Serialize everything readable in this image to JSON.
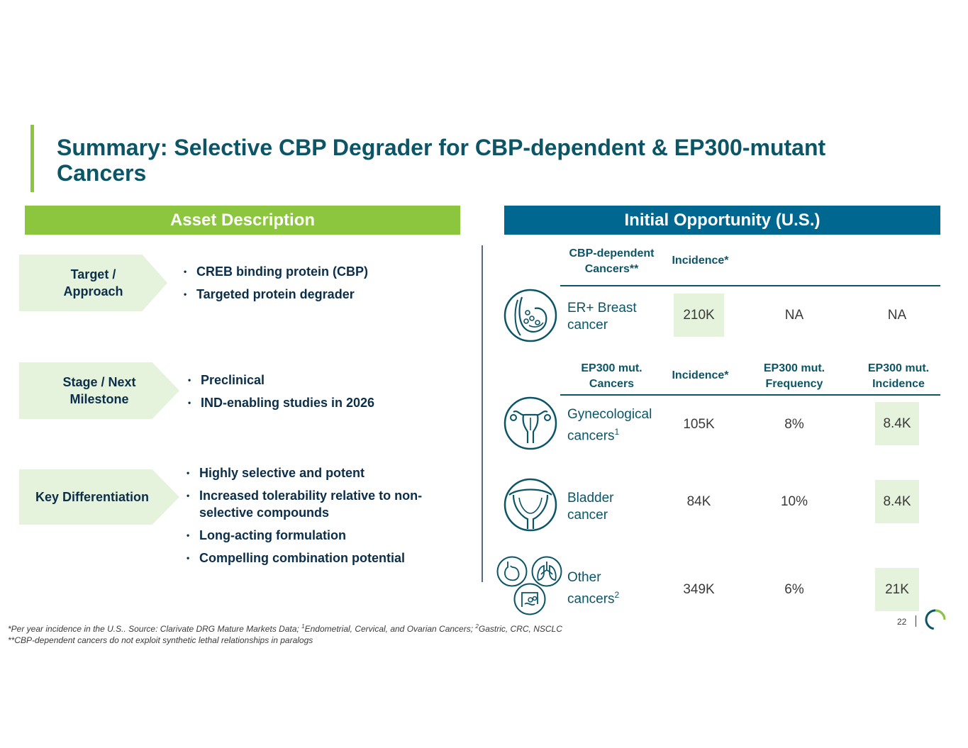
{
  "title": "Summary: Selective CBP Degrader for CBP-dependent & EP300-mutant Cancers",
  "asset_header": "Asset Description",
  "opportunity_header": "Initial Opportunity (U.S.)",
  "sections": [
    {
      "label_line1": "Target /",
      "label_line2": "Approach",
      "bullets": [
        "CREB binding protein (CBP)",
        "Targeted protein degrader"
      ]
    },
    {
      "label_line1": "Stage / Next",
      "label_line2": "Milestone",
      "bullets": [
        "Preclinical",
        "IND-enabling studies in 2026"
      ]
    },
    {
      "label_line1": "Key Differentiation",
      "label_line2": "",
      "bullets": [
        "Highly selective and potent",
        "Increased tolerability relative to non-selective compounds",
        "Long-acting formulation",
        "Compelling combination potential"
      ]
    }
  ],
  "table1": {
    "headers": {
      "cancers_l1": "CBP-dependent",
      "cancers_l2": "Cancers**",
      "incidence": "Incidence*"
    },
    "row": {
      "label_l1": "ER+ Breast",
      "label_l2": "cancer",
      "incidence": "210K",
      "frequency": "NA",
      "mut_incidence": "NA"
    }
  },
  "table2": {
    "headers": {
      "cancers_l1": "EP300 mut.",
      "cancers_l2": "Cancers",
      "incidence": "Incidence*",
      "freq_l1": "EP300 mut.",
      "freq_l2": "Frequency",
      "inc_l1": "EP300 mut.",
      "inc_l2": "Incidence"
    },
    "rows": [
      {
        "label_l1": "Gynecological",
        "label_l2": "cancers",
        "sup": "1",
        "incidence": "105K",
        "frequency": "8%",
        "mut_incidence": "8.4K"
      },
      {
        "label_l1": "Bladder",
        "label_l2": "cancer",
        "sup": "",
        "incidence": "84K",
        "frequency": "10%",
        "mut_incidence": "8.4K"
      },
      {
        "label_l1": "Other",
        "label_l2": "cancers",
        "sup": "2",
        "incidence": "349K",
        "frequency": "6%",
        "mut_incidence": "21K"
      }
    ]
  },
  "footnote": {
    "line1_a": "*Per year incidence in the U.S.. Source: Clarivate DRG Mature Markets Data; ",
    "line1_sup1": "1",
    "line1_b": "Endometrial, Cervical, and Ovarian Cancers; ",
    "line1_sup2": "2",
    "line1_c": "Gastric, CRC, NSCLC",
    "line2": "**CBP-dependent cancers do not exploit synthetic lethal relationships in paralogs"
  },
  "page_number": "22",
  "colors": {
    "green": "#8cc63f",
    "blue": "#006890",
    "teal": "#0b5567",
    "light_green": "#e5f2dc"
  },
  "icons": [
    "breast-icon",
    "uterus-icon",
    "bladder-icon",
    "stomach-icon",
    "lungs-icon",
    "colon-icon",
    "logo-ring-icon"
  ]
}
